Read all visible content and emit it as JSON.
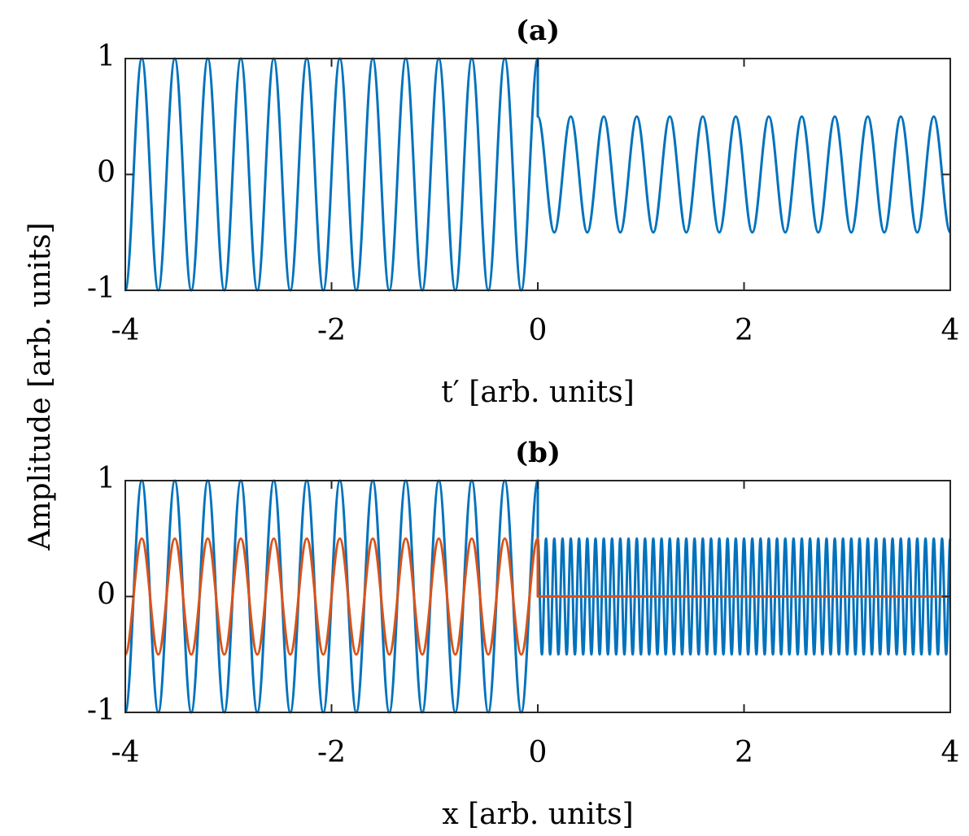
{
  "chart_data": [
    {
      "type": "line",
      "title": "(a)",
      "xlabel": "t′ [arb. units]",
      "ylabel": "Amplitude [arb. units]",
      "xlim": [
        -4,
        4
      ],
      "ylim": [
        -1,
        1
      ],
      "xticks": [
        -4,
        -2,
        0,
        2,
        4
      ],
      "yticks": [
        -1,
        0,
        1
      ],
      "series": [
        {
          "color": "#0072BD",
          "x": [
            -4,
            -3.84,
            -3.68,
            -3.52,
            -3.36,
            -3.2,
            -3.04,
            -2.88,
            -2.72,
            -2.56,
            -2.4,
            -2.24,
            -2.08,
            -1.92,
            -1.76,
            -1.6,
            -1.44,
            -1.28,
            -1.12,
            -0.96,
            -0.8,
            -0.64,
            -0.48,
            -0.32,
            -0.16,
            0,
            0,
            0.16,
            0.32,
            0.48,
            0.64,
            0.8,
            0.96,
            1.12,
            1.28,
            1.44,
            1.6,
            1.76,
            1.92,
            2.08,
            2.24,
            2.4,
            2.56,
            2.72,
            2.88,
            3.04,
            3.2,
            3.36,
            3.52,
            3.68,
            3.84,
            4
          ],
          "values": [
            -1,
            1,
            -1,
            1,
            -1,
            1,
            -1,
            1,
            -1,
            1,
            -1,
            1,
            -1,
            1,
            -1,
            1,
            -1,
            1,
            -1,
            1,
            -1,
            1,
            -1,
            1,
            -1,
            1,
            0.5,
            -0.5,
            0.5,
            -0.5,
            0.5,
            -0.5,
            0.5,
            -0.5,
            0.5,
            -0.5,
            0.5,
            -0.5,
            0.5,
            -0.5,
            0.5,
            -0.5,
            0.5,
            -0.5,
            0.5,
            -0.5,
            0.5,
            -0.5,
            0.5,
            -0.5,
            0.5,
            -0.5
          ]
        }
      ]
    },
    {
      "type": "line",
      "title": "(b)",
      "xlabel": "x [arb. units]",
      "xlim": [
        -4,
        4
      ],
      "ylim": [
        -1,
        1
      ],
      "xticks": [
        -4,
        -2,
        0,
        2,
        4
      ],
      "yticks": [
        -1,
        0,
        1
      ],
      "series": [
        {
          "color": "#0072BD",
          "x": [
            -4,
            -3.84,
            -3.68,
            -3.52,
            -3.36,
            -3.2,
            -3.04,
            -2.88,
            -2.72,
            -2.56,
            -2.4,
            -2.24,
            -2.08,
            -1.92,
            -1.76,
            -1.6,
            -1.44,
            -1.28,
            -1.12,
            -0.96,
            -0.8,
            -0.64,
            -0.48,
            -0.32,
            -0.16,
            0,
            0,
            0.04,
            0.08,
            0.12,
            0.16,
            0.2,
            0.24,
            0.28,
            0.32,
            0.36,
            0.4,
            0.44,
            0.48,
            0.52,
            0.56,
            0.6,
            0.64,
            0.68,
            0.72,
            0.76,
            0.8,
            0.84,
            0.88,
            0.92,
            0.96,
            1,
            1.04,
            1.08,
            1.12,
            1.16,
            1.2,
            1.24,
            1.28,
            1.32,
            1.36,
            1.4,
            1.44,
            1.48,
            1.52,
            1.56,
            1.6,
            1.64,
            1.68,
            1.72,
            1.76,
            1.8,
            1.84,
            1.88,
            1.92,
            1.96,
            2,
            2.04,
            2.08,
            2.12,
            2.16,
            2.2,
            2.24,
            2.28,
            2.32,
            2.36,
            2.4,
            2.44,
            2.48,
            2.52,
            2.56,
            2.6,
            2.64,
            2.68,
            2.72,
            2.76,
            2.8,
            2.84,
            2.88,
            2.92,
            2.96,
            3,
            3.04,
            3.08,
            3.12,
            3.16,
            3.2,
            3.24,
            3.28,
            3.32,
            3.36,
            3.4,
            3.44,
            3.48,
            3.52,
            3.56,
            3.6,
            3.64,
            3.68,
            3.72,
            3.76,
            3.8,
            3.84,
            3.88,
            3.92,
            3.96,
            4
          ],
          "values": [
            -1,
            1,
            -1,
            1,
            -1,
            1,
            -1,
            1,
            -1,
            1,
            -1,
            1,
            -1,
            1,
            -1,
            1,
            -1,
            1,
            -1,
            1,
            -1,
            1,
            -1,
            1,
            -1,
            1,
            0.5,
            -0.5,
            0.5,
            -0.5,
            0.5,
            -0.5,
            0.5,
            -0.5,
            0.5,
            -0.5,
            0.5,
            -0.5,
            0.5,
            -0.5,
            0.5,
            -0.5,
            0.5,
            -0.5,
            0.5,
            -0.5,
            0.5,
            -0.5,
            0.5,
            -0.5,
            0.5,
            -0.5,
            0.5,
            -0.5,
            0.5,
            -0.5,
            0.5,
            -0.5,
            0.5,
            -0.5,
            0.5,
            -0.5,
            0.5,
            -0.5,
            0.5,
            -0.5,
            0.5,
            -0.5,
            0.5,
            -0.5,
            0.5,
            -0.5,
            0.5,
            -0.5,
            0.5,
            -0.5,
            0.5,
            -0.5,
            0.5,
            -0.5,
            0.5,
            -0.5,
            0.5,
            -0.5,
            0.5,
            -0.5,
            0.5,
            -0.5,
            0.5,
            -0.5,
            0.5,
            -0.5,
            0.5,
            -0.5,
            0.5,
            -0.5,
            0.5,
            -0.5,
            0.5,
            -0.5,
            0.5,
            -0.5,
            0.5,
            -0.5,
            0.5,
            -0.5,
            0.5,
            -0.5,
            0.5,
            -0.5,
            0.5,
            -0.5,
            0.5,
            -0.5,
            0.5,
            -0.5,
            0.5,
            -0.5,
            0.5,
            -0.5,
            0.5,
            -0.5,
            0.5,
            -0.5,
            0.5,
            -0.5,
            0.5
          ]
        },
        {
          "color": "#D95319",
          "x": [
            -4,
            -3.84,
            -3.68,
            -3.52,
            -3.36,
            -3.2,
            -3.04,
            -2.88,
            -2.72,
            -2.56,
            -2.4,
            -2.24,
            -2.08,
            -1.92,
            -1.76,
            -1.6,
            -1.44,
            -1.28,
            -1.12,
            -0.96,
            -0.8,
            -0.64,
            -0.48,
            -0.32,
            -0.16,
            0,
            0,
            4
          ],
          "values": [
            -0.5,
            0.5,
            -0.5,
            0.5,
            -0.5,
            0.5,
            -0.5,
            0.5,
            -0.5,
            0.5,
            -0.5,
            0.5,
            -0.5,
            0.5,
            -0.5,
            0.5,
            -0.5,
            0.5,
            -0.5,
            0.5,
            -0.5,
            0.5,
            -0.5,
            0.5,
            -0.5,
            0.5,
            0,
            0
          ]
        }
      ]
    }
  ]
}
